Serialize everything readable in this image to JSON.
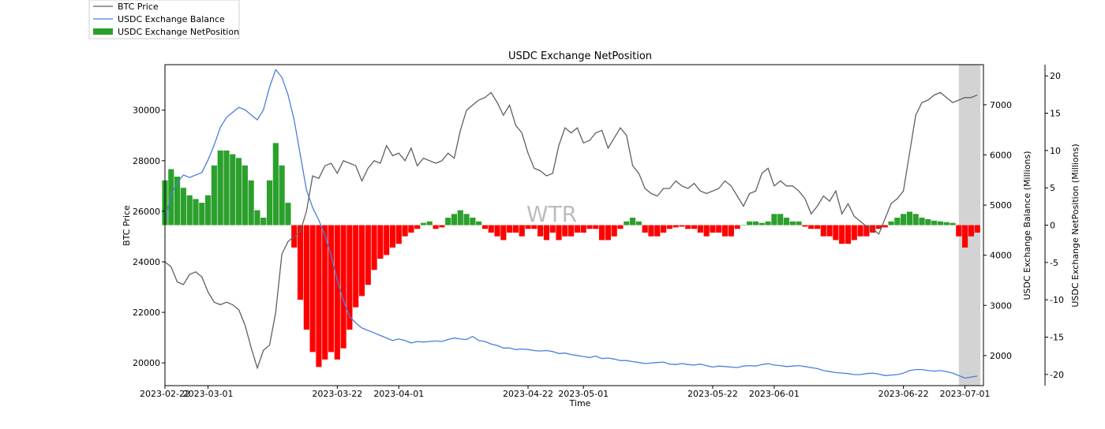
{
  "chart_data": {
    "type": "line",
    "title": "USDC Exchange NetPosition",
    "xlabel": "Time",
    "ylabel_left": "BTC Price",
    "ylabel_right1": "USDC Exchange Balance (Millions)",
    "ylabel_right2": "USDC Exchange NetPosition (Millions)",
    "watermark": "WTR",
    "x_tick_labels": [
      "2023-02-22",
      "2023-03-01",
      "2023-03-22",
      "2023-04-01",
      "2023-04-22",
      "2023-05-01",
      "2023-05-22",
      "2023-06-01",
      "2023-06-22",
      "2023-07-01"
    ],
    "x_tick_days": [
      0,
      7,
      28,
      38,
      59,
      68,
      89,
      99,
      120,
      130
    ],
    "x_range_days": [
      0,
      133
    ],
    "x_start_date": "2023-02-22",
    "y_left": {
      "ticks": [
        20000,
        22000,
        24000,
        26000,
        28000,
        30000
      ],
      "range": [
        19100,
        31800
      ]
    },
    "y_right1": {
      "ticks": [
        2000,
        3000,
        4000,
        5000,
        6000,
        7000
      ],
      "range": [
        1400,
        7800
      ]
    },
    "y_right2": {
      "ticks": [
        -20,
        -15,
        -10,
        -5,
        0,
        5,
        10,
        15,
        20
      ],
      "range": [
        -21.5,
        21.5
      ]
    },
    "shaded_region_days": [
      129,
      132.5
    ],
    "colors": {
      "price": "#606060",
      "balance": "#4a7fd9",
      "net_pos": "#2ca02c",
      "net_neg": "#ff0000",
      "shade": "#d3d3d3"
    },
    "legend": [
      {
        "label": "BTC Price",
        "kind": "line",
        "color": "#606060"
      },
      {
        "label": "USDC Exchange Balance",
        "kind": "line",
        "color": "#4a7fd9"
      },
      {
        "label": "USDC Exchange NetPosition",
        "kind": "patch",
        "color": "#2ca02c"
      }
    ],
    "series": [
      {
        "name": "BTC Price",
        "axis": "left",
        "x": [
          0,
          1,
          2,
          3,
          4,
          5,
          6,
          7,
          8,
          9,
          10,
          11,
          12,
          13,
          14,
          15,
          16,
          17,
          18,
          19,
          20,
          21,
          22,
          23,
          24,
          25,
          26,
          27,
          28,
          29,
          30,
          31,
          32,
          33,
          34,
          35,
          36,
          37,
          38,
          39,
          40,
          41,
          42,
          43,
          44,
          45,
          46,
          47,
          48,
          49,
          50,
          51,
          52,
          53,
          54,
          55,
          56,
          57,
          58,
          59,
          60,
          61,
          62,
          63,
          64,
          65,
          66,
          67,
          68,
          69,
          70,
          71,
          72,
          73,
          74,
          75,
          76,
          77,
          78,
          79,
          80,
          81,
          82,
          83,
          84,
          85,
          86,
          87,
          88,
          89,
          90,
          91,
          92,
          93,
          94,
          95,
          96,
          97,
          98,
          99,
          100,
          101,
          102,
          103,
          104,
          105,
          106,
          107,
          108,
          109,
          110,
          111,
          112,
          113,
          114,
          115,
          116,
          117,
          118,
          119,
          120,
          121,
          122,
          123,
          124,
          125,
          126,
          127,
          128,
          129,
          130,
          131,
          132
        ],
        "values": [
          24000,
          23800,
          23200,
          23100,
          23500,
          23600,
          23400,
          22800,
          22400,
          22300,
          22400,
          22300,
          22100,
          21500,
          20600,
          19800,
          20500,
          20700,
          22000,
          24300,
          24800,
          25000,
          25200,
          26000,
          27400,
          27300,
          27800,
          27900,
          27500,
          28000,
          27900,
          27800,
          27200,
          27700,
          28000,
          27900,
          28600,
          28200,
          28300,
          28000,
          28500,
          27800,
          28100,
          28000,
          27900,
          28000,
          28300,
          28100,
          29200,
          30000,
          30200,
          30400,
          30500,
          30700,
          30300,
          29800,
          30200,
          29400,
          29100,
          28300,
          27700,
          27600,
          27400,
          27500,
          28600,
          29300,
          29100,
          29300,
          28700,
          28800,
          29100,
          29200,
          28500,
          28900,
          29300,
          29000,
          27800,
          27500,
          26900,
          26700,
          26600,
          26900,
          26900,
          27200,
          27000,
          26900,
          27100,
          26800,
          26700,
          26800,
          26900,
          27200,
          27000,
          26600,
          26200,
          26700,
          26800,
          27500,
          27700,
          27000,
          27200,
          27000,
          27000,
          26800,
          26500,
          25900,
          26200,
          26600,
          26400,
          26800,
          25900,
          26300,
          25800,
          25600,
          25400,
          25300,
          25100,
          25700,
          26300,
          26500,
          26800,
          28300,
          29800,
          30300,
          30400,
          30600,
          30700,
          30500,
          30300,
          30400,
          30500,
          30500,
          30600
        ]
      },
      {
        "name": "USDC Exchange Balance",
        "axis": "right1",
        "x": [
          0,
          1,
          2,
          3,
          4,
          5,
          6,
          7,
          8,
          9,
          10,
          11,
          12,
          13,
          14,
          15,
          16,
          17,
          18,
          19,
          20,
          21,
          22,
          23,
          24,
          25,
          26,
          27,
          28,
          29,
          30,
          31,
          32,
          33,
          34,
          35,
          36,
          37,
          38,
          39,
          40,
          41,
          42,
          43,
          44,
          45,
          46,
          47,
          48,
          49,
          50,
          51,
          52,
          53,
          54,
          55,
          56,
          57,
          58,
          59,
          60,
          61,
          62,
          63,
          64,
          65,
          66,
          67,
          68,
          69,
          70,
          71,
          72,
          73,
          74,
          75,
          76,
          77,
          78,
          79,
          80,
          81,
          82,
          83,
          84,
          85,
          86,
          87,
          88,
          89,
          90,
          91,
          92,
          93,
          94,
          95,
          96,
          97,
          98,
          99,
          100,
          101,
          102,
          103,
          104,
          105,
          106,
          107,
          108,
          109,
          110,
          111,
          112,
          113,
          114,
          115,
          116,
          117,
          118,
          119,
          120,
          121,
          122,
          123,
          124,
          125,
          126,
          127,
          128,
          129,
          130,
          131,
          132
        ],
        "values": [
          4700,
          5200,
          5450,
          5600,
          5550,
          5600,
          5650,
          5900,
          6200,
          6550,
          6750,
          6850,
          6950,
          6900,
          6800,
          6700,
          6900,
          7350,
          7700,
          7550,
          7200,
          6700,
          6000,
          5300,
          4950,
          4700,
          4400,
          4000,
          3500,
          3100,
          2780,
          2650,
          2550,
          2500,
          2450,
          2400,
          2350,
          2300,
          2330,
          2300,
          2250,
          2280,
          2270,
          2280,
          2290,
          2280,
          2320,
          2350,
          2330,
          2320,
          2380,
          2300,
          2280,
          2230,
          2200,
          2150,
          2150,
          2120,
          2130,
          2120,
          2100,
          2090,
          2100,
          2080,
          2040,
          2050,
          2020,
          2000,
          1980,
          1960,
          1990,
          1940,
          1950,
          1930,
          1900,
          1900,
          1880,
          1860,
          1840,
          1850,
          1860,
          1870,
          1830,
          1820,
          1840,
          1820,
          1810,
          1830,
          1800,
          1770,
          1790,
          1780,
          1770,
          1760,
          1790,
          1800,
          1790,
          1820,
          1840,
          1810,
          1800,
          1780,
          1790,
          1800,
          1780,
          1760,
          1740,
          1700,
          1680,
          1660,
          1650,
          1640,
          1620,
          1620,
          1640,
          1650,
          1630,
          1600,
          1610,
          1620,
          1650,
          1700,
          1720,
          1720,
          1700,
          1690,
          1700,
          1680,
          1650,
          1600,
          1550,
          1570,
          1590
        ]
      },
      {
        "name": "USDC Exchange NetPosition",
        "axis": "right2",
        "kind": "bars",
        "x": [
          0,
          1,
          2,
          3,
          4,
          5,
          6,
          7,
          8,
          9,
          10,
          11,
          12,
          13,
          14,
          15,
          16,
          17,
          18,
          19,
          20,
          21,
          22,
          23,
          24,
          25,
          26,
          27,
          28,
          29,
          30,
          31,
          32,
          33,
          34,
          35,
          36,
          37,
          38,
          39,
          40,
          41,
          42,
          43,
          44,
          45,
          46,
          47,
          48,
          49,
          50,
          51,
          52,
          53,
          54,
          55,
          56,
          57,
          58,
          59,
          60,
          61,
          62,
          63,
          64,
          65,
          66,
          67,
          68,
          69,
          70,
          71,
          72,
          73,
          74,
          75,
          76,
          77,
          78,
          79,
          80,
          81,
          82,
          83,
          84,
          85,
          86,
          87,
          88,
          89,
          90,
          91,
          92,
          93,
          94,
          95,
          96,
          97,
          98,
          99,
          100,
          101,
          102,
          103,
          104,
          105,
          106,
          107,
          108,
          109,
          110,
          111,
          112,
          113,
          114,
          115,
          116,
          117,
          118,
          119,
          120,
          121,
          122,
          123,
          124,
          125,
          126,
          127,
          128,
          129,
          130,
          131,
          132
        ],
        "values": [
          6,
          7.5,
          6.5,
          5,
          4,
          3.5,
          3,
          4,
          8,
          10,
          10,
          9.5,
          9,
          8,
          6,
          2,
          1,
          6,
          11,
          8,
          3,
          -3,
          -10,
          -14,
          -17,
          -19,
          -18,
          -17,
          -18,
          -16.5,
          -14,
          -11,
          -9.5,
          -8,
          -6,
          -4.5,
          -4,
          -3,
          -2.5,
          -1.5,
          -1,
          -0.5,
          0.3,
          0.5,
          -0.5,
          -0.3,
          1,
          1.5,
          2,
          1.5,
          1,
          0.5,
          -0.5,
          -1,
          -1.5,
          -2,
          -1,
          -1,
          -1.5,
          -0.5,
          -0.5,
          -1.5,
          -2,
          -1,
          -2,
          -1.5,
          -1.5,
          -1,
          -1,
          -0.5,
          -0.5,
          -2,
          -2,
          -1.5,
          -0.5,
          0.5,
          1,
          0.5,
          -1,
          -1.5,
          -1.5,
          -1,
          -0.5,
          -0.3,
          -0.2,
          -0.5,
          -0.5,
          -1,
          -1.5,
          -1,
          -1,
          -1.5,
          -1.5,
          -0.5,
          0,
          0.5,
          0.5,
          0.3,
          0.5,
          1.5,
          1.5,
          1,
          0.5,
          0.5,
          -0.2,
          -0.5,
          -0.5,
          -1.5,
          -1.5,
          -2,
          -2.5,
          -2.5,
          -2,
          -1.5,
          -1.5,
          -1,
          -0.5,
          -0.3,
          0.5,
          1,
          1.5,
          1.8,
          1.5,
          1,
          0.8,
          0.6,
          0.5,
          0.4,
          0.3,
          -1.5,
          -3,
          -1.5,
          -1
        ]
      }
    ]
  }
}
